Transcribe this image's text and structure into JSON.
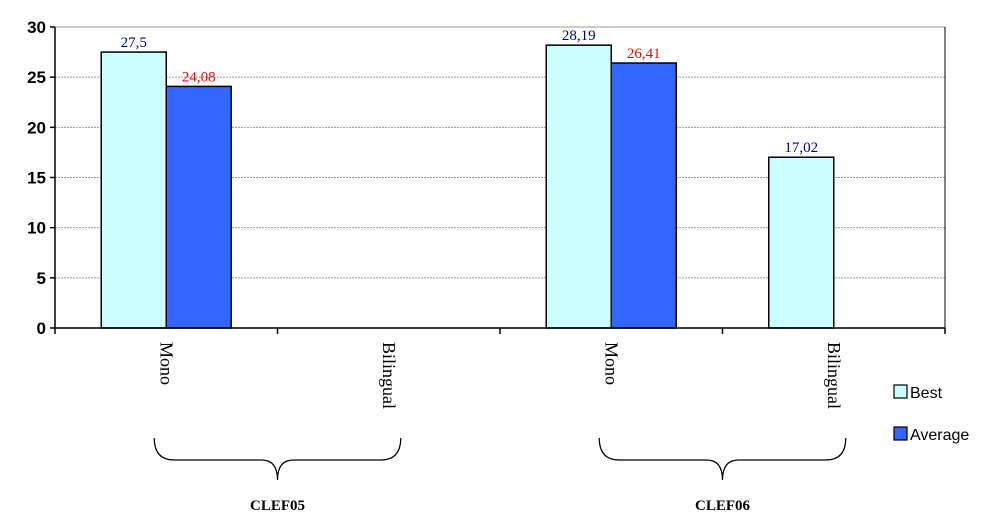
{
  "chart_data": {
    "type": "bar",
    "categories": [
      "Mono",
      "Bilingual",
      "Mono",
      "Bilingual"
    ],
    "groups": [
      {
        "label": "CLEF05",
        "categories": [
          0,
          1
        ]
      },
      {
        "label": "CLEF06",
        "categories": [
          2,
          3
        ]
      }
    ],
    "series": [
      {
        "name": "Best",
        "values": [
          27.5,
          null,
          28.19,
          17.02
        ],
        "labels": [
          "27,5",
          "",
          "28,19",
          "17,02"
        ],
        "color": "#ccffff",
        "label_color": "#000080"
      },
      {
        "name": "Average",
        "values": [
          24.08,
          null,
          26.41,
          null
        ],
        "labels": [
          "24,08",
          "",
          "26,41",
          ""
        ],
        "color": "#3366ff",
        "label_color": "#ff0000"
      }
    ],
    "ylim": [
      0,
      30
    ],
    "yticks": [
      0,
      5,
      10,
      15,
      20,
      25,
      30
    ],
    "title": "",
    "xlabel": "",
    "ylabel": "",
    "grid": true,
    "legend_position": "right"
  }
}
